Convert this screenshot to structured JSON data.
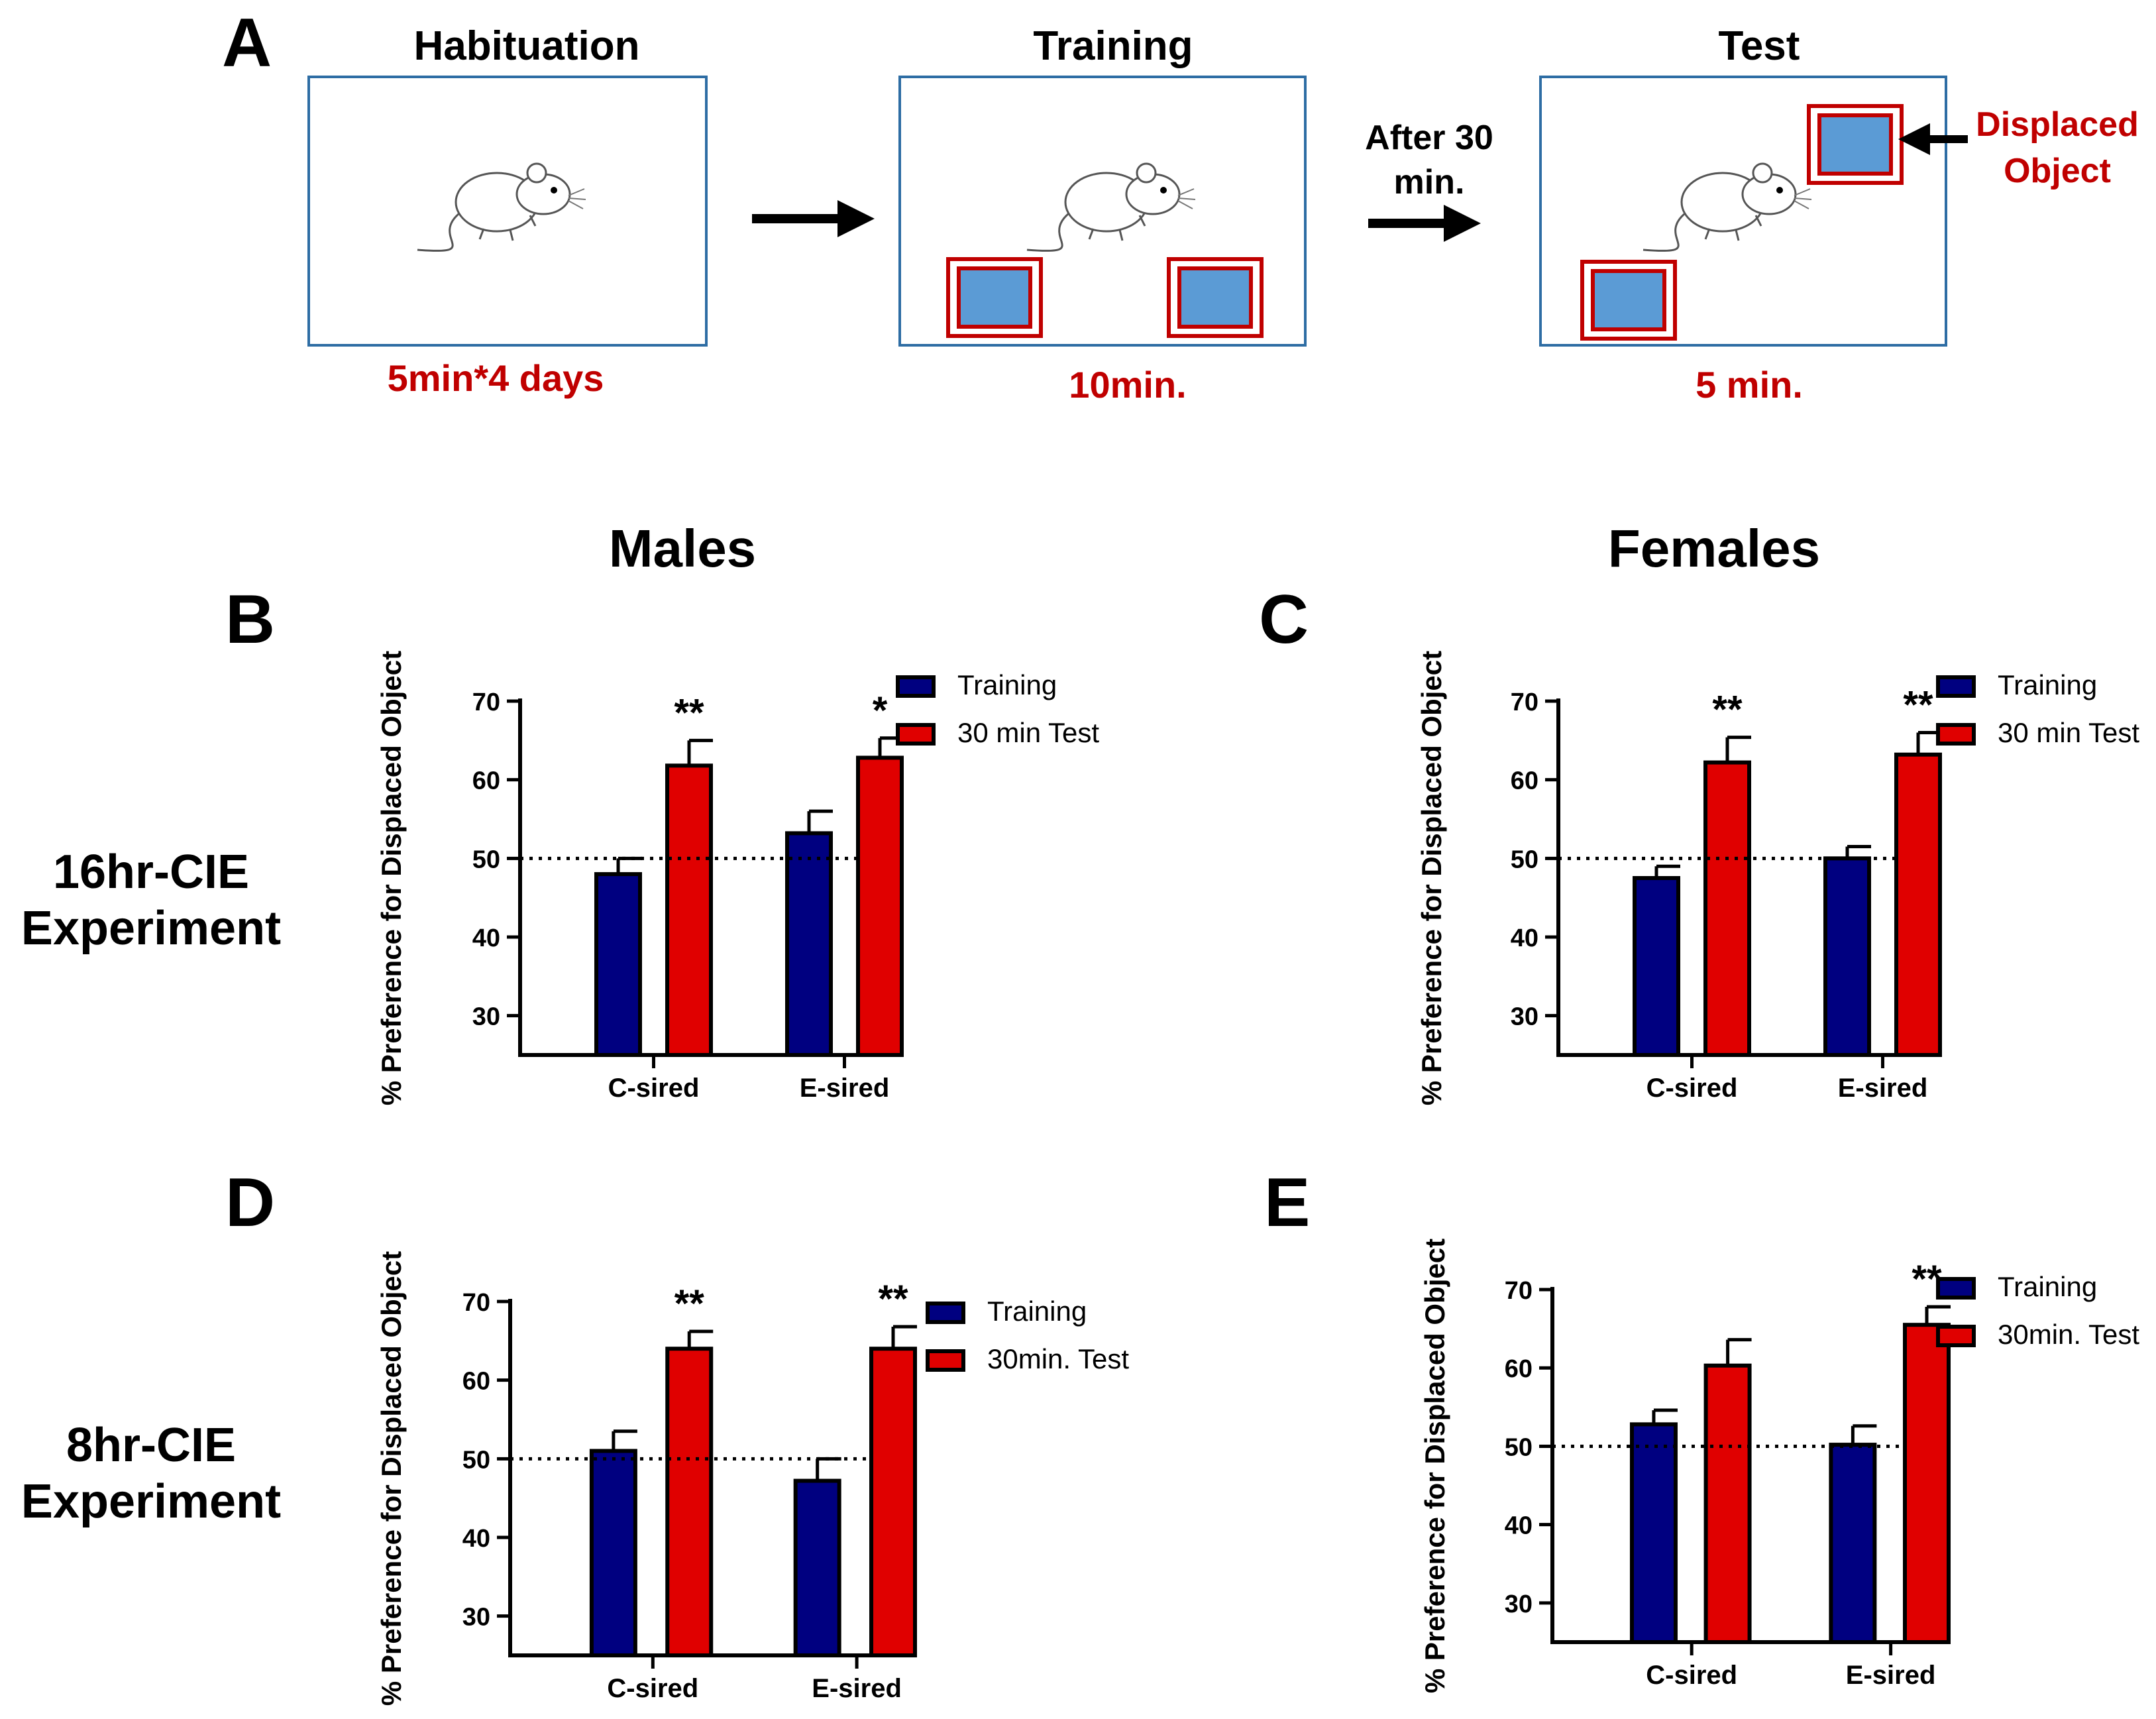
{
  "panel_a": {
    "letter": "A",
    "stages": [
      {
        "title": "Habituation",
        "duration": "5min*4 days"
      },
      {
        "title": "Training",
        "duration": "10min."
      },
      {
        "title": "Test",
        "duration": "5 min."
      }
    ],
    "delay_label_line1": "After 30",
    "delay_label_line2": "min.",
    "displaced_label_line1": "Displaced",
    "displaced_label_line2": "Object"
  },
  "column_headers": {
    "males": "Males",
    "females": "Females"
  },
  "row_labels": {
    "row1_line1": "16hr-CIE",
    "row1_line2": "Experiment",
    "row2_line1": "8hr-CIE",
    "row2_line2": "Experiment"
  },
  "colors": {
    "training": "#000080",
    "test": "#e00000",
    "object_fill": "#5b9bd5",
    "object_border": "#c00000",
    "arena_border": "#2e6da4",
    "accent_text": "#c00000"
  },
  "chart_data": [
    {
      "panel": "B",
      "type": "bar",
      "group": "Males",
      "experiment": "16hr-CIE",
      "ylabel": "% Preference for Displaced Object",
      "ylim": [
        25,
        70
      ],
      "yticks": [
        30,
        40,
        50,
        60,
        70
      ],
      "reference_line": 50,
      "categories": [
        "C-sired",
        "E-sired"
      ],
      "series": [
        {
          "name": "Training",
          "values": [
            48,
            53.2
          ],
          "errors": [
            2,
            2.8
          ]
        },
        {
          "name": "30 min Test",
          "values": [
            61.8,
            62.8
          ],
          "errors": [
            3.2,
            2.5
          ]
        }
      ],
      "annotations": [
        "**",
        "*"
      ],
      "legend_position": "top-right"
    },
    {
      "panel": "C",
      "type": "bar",
      "group": "Females",
      "experiment": "16hr-CIE",
      "ylabel": "% Preference for Displaced Object",
      "ylim": [
        25,
        70
      ],
      "yticks": [
        30,
        40,
        50,
        60,
        70
      ],
      "reference_line": 50,
      "categories": [
        "C-sired",
        "E-sired"
      ],
      "series": [
        {
          "name": "Training",
          "values": [
            47.5,
            50
          ],
          "errors": [
            1.5,
            1.5
          ]
        },
        {
          "name": "30 min Test",
          "values": [
            62.2,
            63.2
          ],
          "errors": [
            3.2,
            2.8
          ]
        }
      ],
      "annotations": [
        "**",
        "**"
      ],
      "legend_position": "top-right"
    },
    {
      "panel": "D",
      "type": "bar",
      "group": "Males",
      "experiment": "8hr-CIE",
      "ylabel": "% Preference for Displaced Object",
      "ylim": [
        25,
        70
      ],
      "yticks": [
        30,
        40,
        50,
        60,
        70
      ],
      "reference_line": 50,
      "categories": [
        "C-sired",
        "E-sired"
      ],
      "series": [
        {
          "name": "Training",
          "values": [
            51,
            47.2
          ],
          "errors": [
            2.5,
            2.8
          ]
        },
        {
          "name": "30min. Test",
          "values": [
            64,
            64
          ],
          "errors": [
            2.2,
            2.8
          ]
        }
      ],
      "annotations": [
        "**",
        "**"
      ],
      "legend_position": "top-right"
    },
    {
      "panel": "E",
      "type": "bar",
      "group": "Females",
      "experiment": "8hr-CIE",
      "ylabel": "% Preference for Displaced Object",
      "ylim": [
        25,
        70
      ],
      "yticks": [
        30,
        40,
        50,
        60,
        70
      ],
      "reference_line": 50,
      "categories": [
        "C-sired",
        "E-sired"
      ],
      "series": [
        {
          "name": "Training",
          "values": [
            52.8,
            50.2
          ],
          "errors": [
            1.8,
            2.4
          ]
        },
        {
          "name": "30min. Test",
          "values": [
            60.3,
            65.5
          ],
          "errors": [
            3.3,
            2.3
          ]
        }
      ],
      "annotations": [
        "",
        "**"
      ],
      "legend_position": "top-right"
    }
  ]
}
